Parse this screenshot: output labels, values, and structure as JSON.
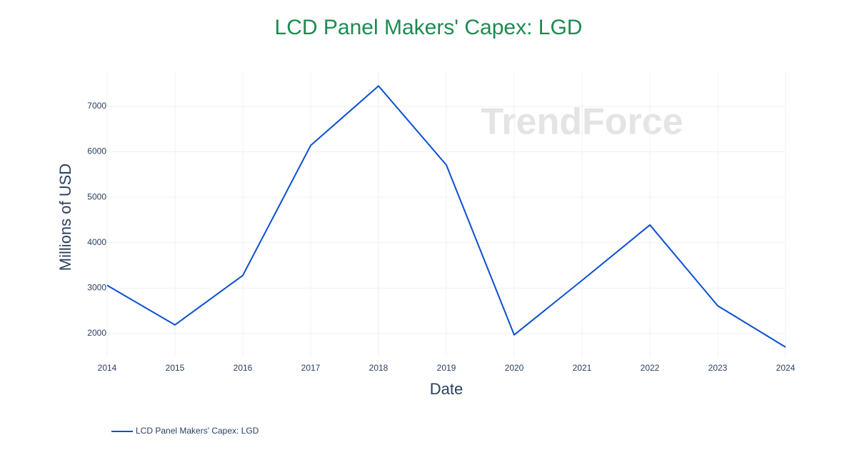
{
  "chart_data": {
    "type": "line",
    "title": "LCD Panel Makers' Capex: LGD",
    "x_label": "Date",
    "y_label": "Millions of USD",
    "watermark": "TrendForce",
    "x": [
      2014,
      2015,
      2016,
      2017,
      2018,
      2019,
      2020,
      2021,
      2022,
      2023,
      2024
    ],
    "series": [
      {
        "name": "LCD Panel Makers' Capex: LGD",
        "color": "#0b4fd1",
        "values": [
          3060,
          2190,
          3280,
          6140,
          7450,
          5710,
          1970,
          3170,
          4390,
          2610,
          1700
        ]
      }
    ],
    "xlim": [
      2014,
      2024
    ],
    "xticks": [
      2014,
      2015,
      2016,
      2017,
      2018,
      2019,
      2020,
      2021,
      2022,
      2023,
      2024
    ],
    "ylim": [
      1480,
      7770
    ],
    "yticks": [
      2000,
      3000,
      4000,
      5000,
      6000,
      7000
    ],
    "grid": true,
    "legend": "bottom-left"
  }
}
